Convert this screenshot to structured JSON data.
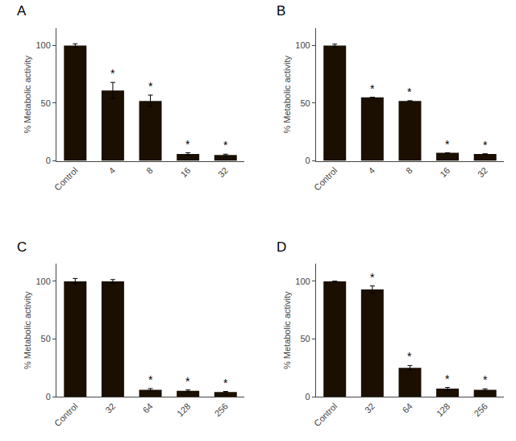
{
  "chart_data": [
    {
      "type": "bar",
      "title": "A",
      "ylabel": "% Metabolic activity",
      "categories": [
        "Control",
        "4",
        "8",
        "16",
        "32"
      ],
      "values": [
        100,
        61,
        52,
        6,
        5
      ],
      "errors": [
        1.5,
        7,
        5,
        1,
        0.8
      ],
      "annotations": [
        {
          "x": "4",
          "text": "*"
        },
        {
          "x": "8",
          "text": "*"
        },
        {
          "x": "16",
          "text": "*"
        },
        {
          "x": "32",
          "text": "*"
        }
      ],
      "color": "#1a0f00",
      "ylim": [
        0,
        115
      ],
      "yticks": [
        0,
        50,
        100
      ],
      "grid": false
    },
    {
      "type": "bar",
      "title": "B",
      "ylabel": "% Metabolic activity",
      "categories": [
        "Control",
        "4",
        "8",
        "16",
        "32"
      ],
      "values": [
        100,
        55,
        52,
        7,
        6
      ],
      "errors": [
        1.2,
        0,
        0,
        0,
        0
      ],
      "annotations": [
        {
          "x": "4",
          "text": "*"
        },
        {
          "x": "8",
          "text": "*"
        },
        {
          "x": "16",
          "text": "*"
        },
        {
          "x": "32",
          "text": "*"
        }
      ],
      "color": "#1a0f00",
      "ylim": [
        0,
        115
      ],
      "yticks": [
        0,
        50,
        100
      ],
      "grid": false
    },
    {
      "type": "bar",
      "title": "C",
      "ylabel": "% Metabolic activity",
      "categories": [
        "Control",
        "32",
        "64",
        "128",
        "256"
      ],
      "values": [
        100,
        100,
        6,
        5,
        4
      ],
      "errors": [
        2.5,
        1.5,
        1,
        0.8,
        0.5
      ],
      "annotations": [
        {
          "x": "64",
          "text": "*"
        },
        {
          "x": "128",
          "text": "*"
        },
        {
          "x": "256",
          "text": "*"
        }
      ],
      "color": "#1a0f00",
      "ylim": [
        0,
        115
      ],
      "yticks": [
        0,
        50,
        100
      ],
      "grid": false
    },
    {
      "type": "bar",
      "title": "D",
      "ylabel": "% Metabolic activity",
      "categories": [
        "Control",
        "32",
        "64",
        "128",
        "256"
      ],
      "values": [
        100,
        93,
        25,
        7,
        6
      ],
      "errors": [
        0,
        3,
        2,
        1,
        0.8
      ],
      "annotations": [
        {
          "x": "32",
          "text": "*"
        },
        {
          "x": "64",
          "text": "*"
        },
        {
          "x": "128",
          "text": "*"
        },
        {
          "x": "256",
          "text": "*"
        }
      ],
      "color": "#1a0f00",
      "ylim": [
        0,
        115
      ],
      "yticks": [
        0,
        50,
        100
      ],
      "grid": false
    }
  ]
}
